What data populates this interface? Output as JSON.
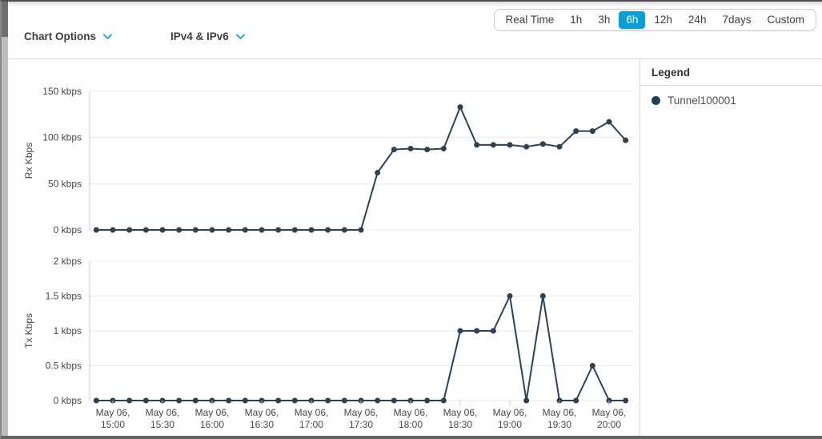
{
  "header": {
    "time_ranges": [
      "Real Time",
      "1h",
      "3h",
      "6h",
      "12h",
      "24h",
      "7days",
      "Custom"
    ],
    "selected_range": "6h",
    "chart_options_label": "Chart Options",
    "ip_filter_label": "IPv4 & IPv6"
  },
  "legend": {
    "title": "Legend",
    "items": [
      {
        "label": "Tunnel100001",
        "color": "#1e4058"
      }
    ]
  },
  "colors": {
    "line": "#2e4154",
    "accent": "#0b9fd8",
    "grid": "#e9e9e9",
    "axis_line": "#d6dde4",
    "tick_text": "#43494f",
    "selected_range_bg": "#0b9fd8"
  },
  "x_axis": {
    "times": [
      "14:50",
      "15:00",
      "15:10",
      "15:20",
      "15:30",
      "15:40",
      "15:50",
      "16:00",
      "16:10",
      "16:20",
      "16:30",
      "16:40",
      "16:50",
      "17:00",
      "17:10",
      "17:20",
      "17:30",
      "17:40",
      "17:50",
      "18:00",
      "18:10",
      "18:20",
      "18:30",
      "18:40",
      "18:50",
      "19:00",
      "19:10",
      "19:20",
      "19:30",
      "19:40",
      "19:50",
      "20:00",
      "20:10"
    ],
    "tick_labels": [
      {
        "date": "May 06,",
        "time": "15:00"
      },
      {
        "date": "May 06,",
        "time": "15:30"
      },
      {
        "date": "May 06,",
        "time": "16:00"
      },
      {
        "date": "May 06,",
        "time": "16:30"
      },
      {
        "date": "May 06,",
        "time": "17:00"
      },
      {
        "date": "May 06,",
        "time": "17:30"
      },
      {
        "date": "May 06,",
        "time": "18:00"
      },
      {
        "date": "May 06,",
        "time": "18:30"
      },
      {
        "date": "May 06,",
        "time": "19:00"
      },
      {
        "date": "May 06,",
        "time": "19:30"
      },
      {
        "date": "May 06,",
        "time": "20:00"
      }
    ]
  },
  "chart_data": [
    {
      "type": "line",
      "ylabel": "Rx Kbps",
      "ylim": [
        0,
        150
      ],
      "yticks": [
        {
          "value": 0,
          "label": "0 kbps"
        },
        {
          "value": 50,
          "label": "50 kbps"
        },
        {
          "value": 100,
          "label": "100 kbps"
        },
        {
          "value": 150,
          "label": "150 kbps"
        }
      ],
      "grid": true,
      "legend_position": "right",
      "series": [
        {
          "name": "Tunnel100001",
          "values": [
            0,
            0,
            0,
            0,
            0,
            0,
            0,
            0,
            0,
            0,
            0,
            0,
            0,
            0,
            0,
            0,
            0,
            62,
            87,
            88,
            87,
            88,
            133,
            92,
            92,
            92,
            90,
            93,
            90,
            107,
            107,
            117,
            97
          ]
        }
      ]
    },
    {
      "type": "line",
      "ylabel": "Tx Kbps",
      "ylim": [
        0,
        2
      ],
      "yticks": [
        {
          "value": 0,
          "label": "0 kbps"
        },
        {
          "value": 0.5,
          "label": "0.5 kbps"
        },
        {
          "value": 1,
          "label": "1 kbps"
        },
        {
          "value": 1.5,
          "label": "1.5 kbps"
        },
        {
          "value": 2,
          "label": "2 kbps"
        }
      ],
      "grid": true,
      "legend_position": "right",
      "series": [
        {
          "name": "Tunnel100001",
          "values": [
            0,
            0,
            0,
            0,
            0,
            0,
            0,
            0,
            0,
            0,
            0,
            0,
            0,
            0,
            0,
            0,
            0,
            0,
            0,
            0,
            0,
            0,
            1,
            1,
            1,
            1.5,
            0,
            1.5,
            0,
            0,
            0.5,
            0,
            0
          ]
        }
      ]
    }
  ]
}
